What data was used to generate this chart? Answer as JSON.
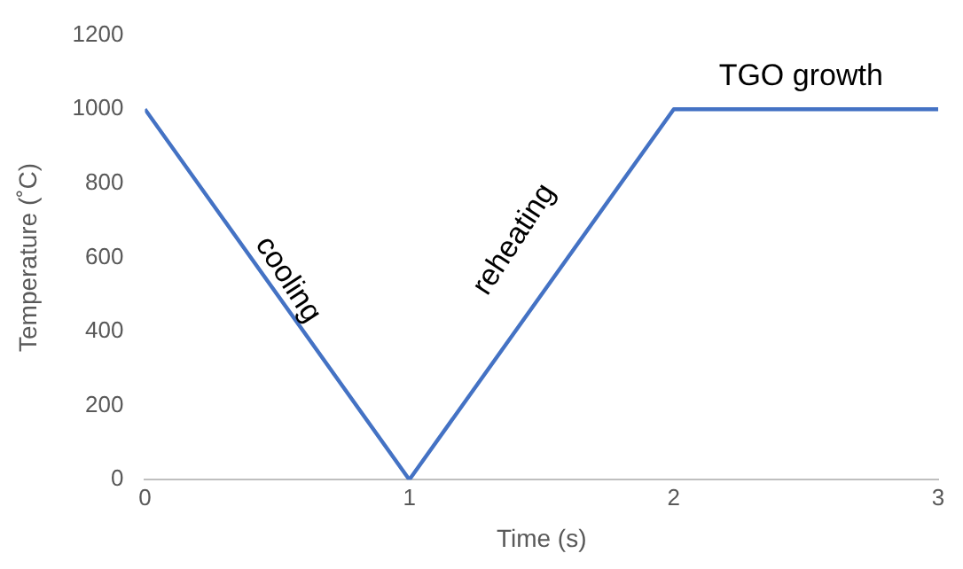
{
  "chart_data": {
    "type": "line",
    "xlabel": "Time (s)",
    "ylabel": "Temperature (˚C)",
    "x": [
      0,
      1,
      2,
      3
    ],
    "series": [
      {
        "color": "#4472c4",
        "values": [
          1000,
          0,
          1000,
          1000
        ]
      }
    ],
    "xlim": [
      0,
      3
    ],
    "xticks": [
      0,
      1,
      2,
      3
    ],
    "ylim": [
      0,
      1200
    ],
    "yticks": [
      0,
      200,
      400,
      600,
      800,
      1000,
      1200
    ],
    "grid": false,
    "legend": false,
    "marker": "none",
    "line_style": "solid",
    "annotations": [
      "cooling",
      "reheating",
      "TGO growth"
    ]
  }
}
